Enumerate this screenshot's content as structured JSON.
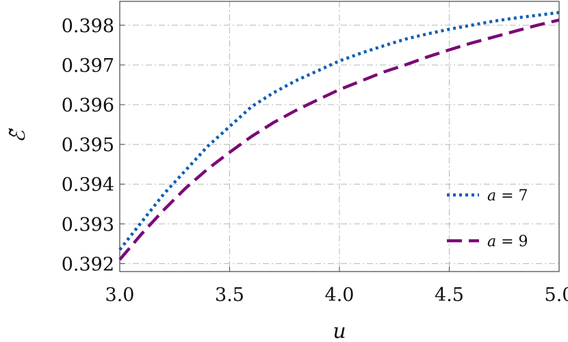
{
  "chart_data": {
    "type": "line",
    "xlabel": "u",
    "ylabel": "ℰ̃",
    "xlim": [
      3.0,
      5.0
    ],
    "ylim": [
      0.3918,
      0.3986
    ],
    "x_ticks": [
      "3.0",
      "3.5",
      "4.0",
      "4.5",
      "5.0"
    ],
    "y_ticks": [
      "0.392",
      "0.393",
      "0.394",
      "0.395",
      "0.396",
      "0.397",
      "0.398"
    ],
    "grid": true,
    "legend_position": "lower-right",
    "series": [
      {
        "name": "a = 7",
        "var": "a",
        "val": "7",
        "color": "#0a5fb4",
        "style": "dotted",
        "x": [
          3.0,
          3.1,
          3.2,
          3.3,
          3.4,
          3.5,
          3.6,
          3.7,
          3.8,
          3.9,
          4.0,
          4.1,
          4.2,
          4.3,
          4.4,
          4.5,
          4.6,
          4.7,
          4.8,
          4.9,
          5.0
        ],
        "y": [
          0.39235,
          0.39305,
          0.39375,
          0.39435,
          0.39495,
          0.39545,
          0.39595,
          0.3963,
          0.3966,
          0.39685,
          0.3971,
          0.3973,
          0.39748,
          0.39765,
          0.39778,
          0.3979,
          0.398,
          0.3981,
          0.39818,
          0.39825,
          0.39832
        ]
      },
      {
        "name": "a = 9",
        "var": "a",
        "val": "9",
        "color": "#7a0a78",
        "style": "dashed",
        "x": [
          3.0,
          3.1,
          3.2,
          3.3,
          3.4,
          3.5,
          3.6,
          3.7,
          3.8,
          3.9,
          4.0,
          4.1,
          4.2,
          4.3,
          4.4,
          4.5,
          4.6,
          4.7,
          4.8,
          4.9,
          5.0
        ],
        "y": [
          0.3921,
          0.39275,
          0.39335,
          0.3939,
          0.39438,
          0.3948,
          0.3952,
          0.39555,
          0.39585,
          0.39612,
          0.39638,
          0.3966,
          0.39682,
          0.397,
          0.3972,
          0.39738,
          0.39755,
          0.3977,
          0.39785,
          0.398,
          0.39813
        ]
      }
    ]
  }
}
